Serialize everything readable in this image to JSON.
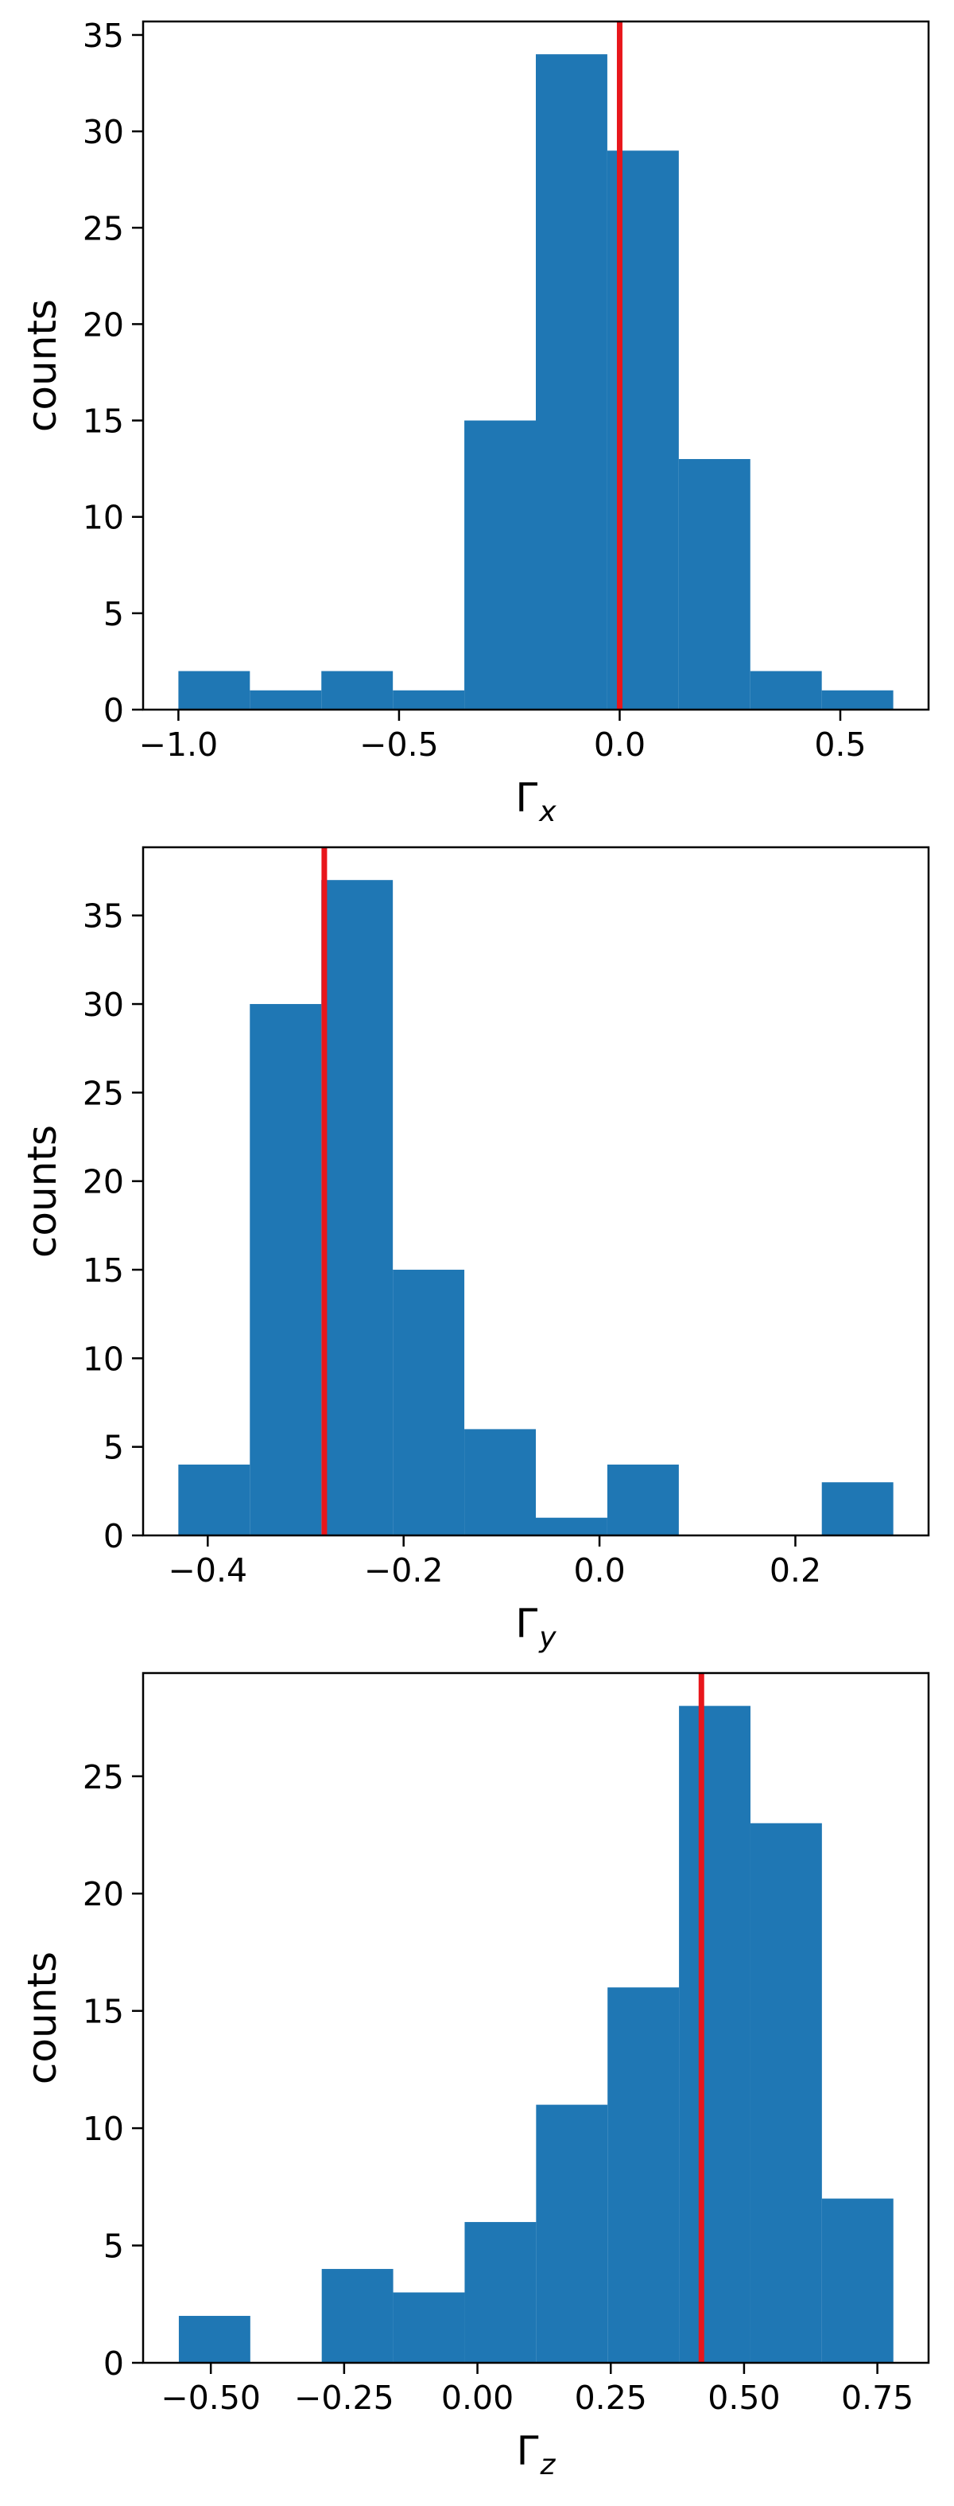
{
  "colors": {
    "bar": "#1f77b4",
    "marker_line": "#e8161b",
    "axes": "#000000",
    "background": "#ffffff"
  },
  "chart_data": [
    {
      "type": "bar",
      "title": "",
      "xlabel": "Γ",
      "xlabel_subscript": "x",
      "ylabel": "counts",
      "grid": false,
      "legend": "none",
      "xlim": [
        -1.08,
        0.7
      ],
      "ylim": [
        0,
        35.7
      ],
      "xticks": [
        -1.0,
        -0.5,
        0.0,
        0.5
      ],
      "xtick_labels": [
        "−1.0",
        "−0.5",
        "0.0",
        "0.5"
      ],
      "yticks": [
        0,
        5,
        10,
        15,
        20,
        25,
        30,
        35
      ],
      "ytick_labels": [
        "0",
        "5",
        "10",
        "15",
        "20",
        "25",
        "30",
        "35"
      ],
      "bin_edges": [
        -1.0,
        -0.838,
        -0.676,
        -0.514,
        -0.352,
        -0.19,
        -0.028,
        0.134,
        0.296,
        0.458,
        0.62
      ],
      "counts": [
        2,
        1,
        2,
        1,
        15,
        34,
        29,
        13,
        2,
        1
      ],
      "vertical_line_x": 0.0
    },
    {
      "type": "bar",
      "title": "",
      "xlabel": "Γ",
      "xlabel_subscript": "y",
      "ylabel": "counts",
      "grid": false,
      "legend": "none",
      "xlim": [
        -0.466,
        0.336
      ],
      "ylim": [
        0,
        38.85
      ],
      "xticks": [
        -0.4,
        -0.2,
        0.0,
        0.2
      ],
      "xtick_labels": [
        "−0.4",
        "−0.2",
        "0.0",
        "0.2"
      ],
      "yticks": [
        0,
        5,
        10,
        15,
        20,
        25,
        30,
        35
      ],
      "ytick_labels": [
        "0",
        "5",
        "10",
        "15",
        "20",
        "25",
        "30",
        "35"
      ],
      "bin_edges": [
        -0.43,
        -0.357,
        -0.284,
        -0.211,
        -0.138,
        -0.065,
        0.008,
        0.081,
        0.154,
        0.227,
        0.3
      ],
      "counts": [
        4,
        30,
        37,
        15,
        6,
        1,
        4,
        0,
        0,
        3
      ],
      "vertical_line_x": -0.281
    },
    {
      "type": "bar",
      "title": "",
      "xlabel": "Γ",
      "xlabel_subscript": "z",
      "ylabel": "counts",
      "grid": false,
      "legend": "none",
      "xlim": [
        -0.627,
        0.846
      ],
      "ylim": [
        0,
        29.4
      ],
      "xticks": [
        -0.5,
        -0.25,
        0.0,
        0.25,
        0.5,
        0.75
      ],
      "xtick_labels": [
        "−0.50",
        "−0.25",
        "0.00",
        "0.25",
        "0.50",
        "0.75"
      ],
      "yticks": [
        0,
        5,
        10,
        15,
        20,
        25
      ],
      "ytick_labels": [
        "0",
        "5",
        "10",
        "15",
        "20",
        "25"
      ],
      "bin_edges": [
        -0.56,
        -0.426,
        -0.292,
        -0.158,
        -0.024,
        0.11,
        0.244,
        0.378,
        0.512,
        0.646,
        0.78
      ],
      "counts": [
        2,
        0,
        4,
        3,
        6,
        11,
        16,
        28,
        23,
        7
      ],
      "vertical_line_x": 0.42
    }
  ]
}
